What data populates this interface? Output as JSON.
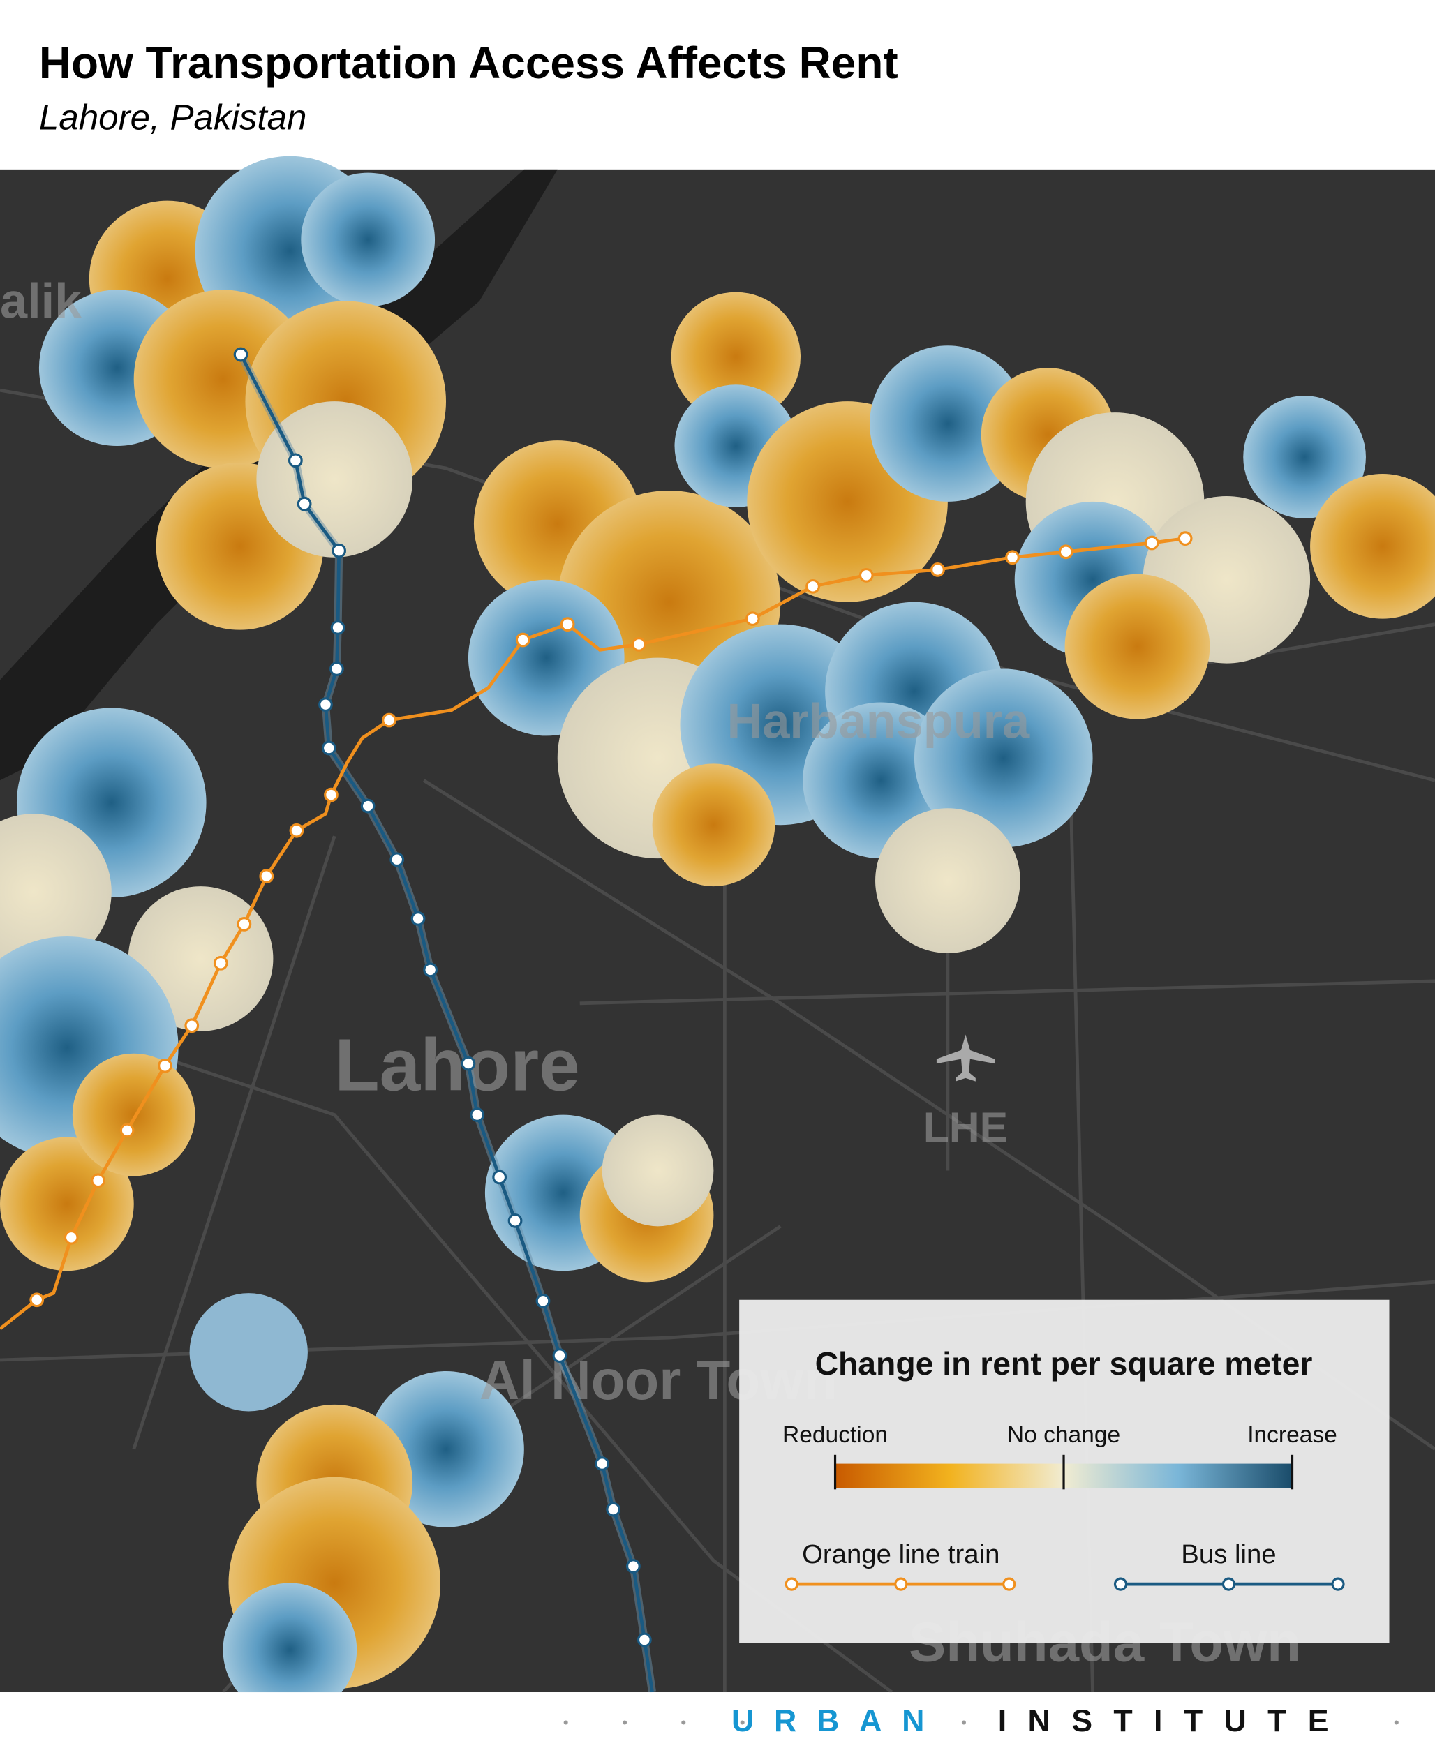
{
  "header": {
    "title": "How Transportation Access Affects Rent",
    "subtitle": "Lahore, Pakistan"
  },
  "map": {
    "labels": {
      "malik": "alik",
      "harbanspura": "Harbanspura",
      "lahore": "Lahore",
      "airport": "LHE",
      "al_noor": "Al Noor Town",
      "shuhada": "Shuhada Town"
    }
  },
  "legend": {
    "title": "Change in rent per square meter",
    "low": "Reduction",
    "mid": "No change",
    "high": "Increase",
    "train": "Orange line train",
    "bus": "Bus line"
  },
  "footer": {
    "left": "URBAN",
    "right": "INSTITUTE"
  }
}
